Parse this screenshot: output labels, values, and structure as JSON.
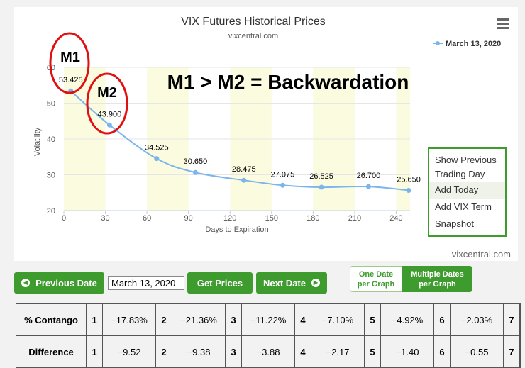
{
  "chart_data": {
    "type": "line",
    "title": "VIX Futures Historical Prices",
    "subtitle": "vixcentral.com",
    "credit": "vixcentral.com",
    "xlabel": "Days to Expiration",
    "ylabel": "Volatility",
    "xlim": [
      0,
      250
    ],
    "ylim": [
      20,
      60
    ],
    "x_ticks": [
      "0",
      "30",
      "60",
      "90",
      "120",
      "150",
      "180",
      "210",
      "240"
    ],
    "y_ticks": [
      "20",
      "30",
      "40",
      "50",
      "60"
    ],
    "legend_position": "top-right",
    "series": [
      {
        "name": "March 13, 2020",
        "color": "#7cb5ec",
        "x": [
          5,
          33,
          67,
          95,
          130,
          158,
          186,
          220,
          249
        ],
        "values": [
          53.425,
          43.9,
          34.525,
          30.65,
          28.475,
          27.075,
          26.525,
          26.7,
          25.65
        ],
        "labels": [
          "53.425",
          "43.900",
          "34.525",
          "30.650",
          "28.475",
          "27.075",
          "26.525",
          "26.700",
          "25.650"
        ]
      }
    ],
    "highlight_bands": [
      [
        0,
        30
      ],
      [
        60,
        90
      ],
      [
        120,
        150
      ],
      [
        180,
        210
      ],
      [
        240,
        250
      ]
    ],
    "annotations": {
      "m1": "M1",
      "m2": "M2",
      "headline": "M1 > M2 = Backwardation"
    }
  },
  "export_menu": {
    "items": [
      "Show Previous",
      "Trading Day",
      "Add Today",
      "Add VIX Term",
      "Snapshot"
    ]
  },
  "controls": {
    "previous_date": "Previous Date",
    "date_value": "March 13, 2020",
    "get_prices": "Get Prices",
    "next_date": "Next Date",
    "one_date": "One Date per Graph",
    "multiple_dates": "Multiple Dates per Graph"
  },
  "table": {
    "rows": [
      {
        "header": "% Contango",
        "cells": [
          [
            "1",
            "−17.83%"
          ],
          [
            "2",
            "−21.36%"
          ],
          [
            "3",
            "−11.22%"
          ],
          [
            "4",
            "−7.10%"
          ],
          [
            "5",
            "−4.92%"
          ],
          [
            "6",
            "−2.03%"
          ],
          [
            "7",
            ""
          ]
        ]
      },
      {
        "header": "Difference",
        "cells": [
          [
            "1",
            "−9.52"
          ],
          [
            "2",
            "−9.38"
          ],
          [
            "3",
            "−3.88"
          ],
          [
            "4",
            "−2.17"
          ],
          [
            "5",
            "−1.40"
          ],
          [
            "6",
            "−0.55"
          ],
          [
            "7",
            ""
          ]
        ]
      }
    ]
  },
  "colors": {
    "line": "#7cb5ec",
    "band": "#fbfbe0",
    "button": "#3e9b2d",
    "circle": "#e01010"
  }
}
